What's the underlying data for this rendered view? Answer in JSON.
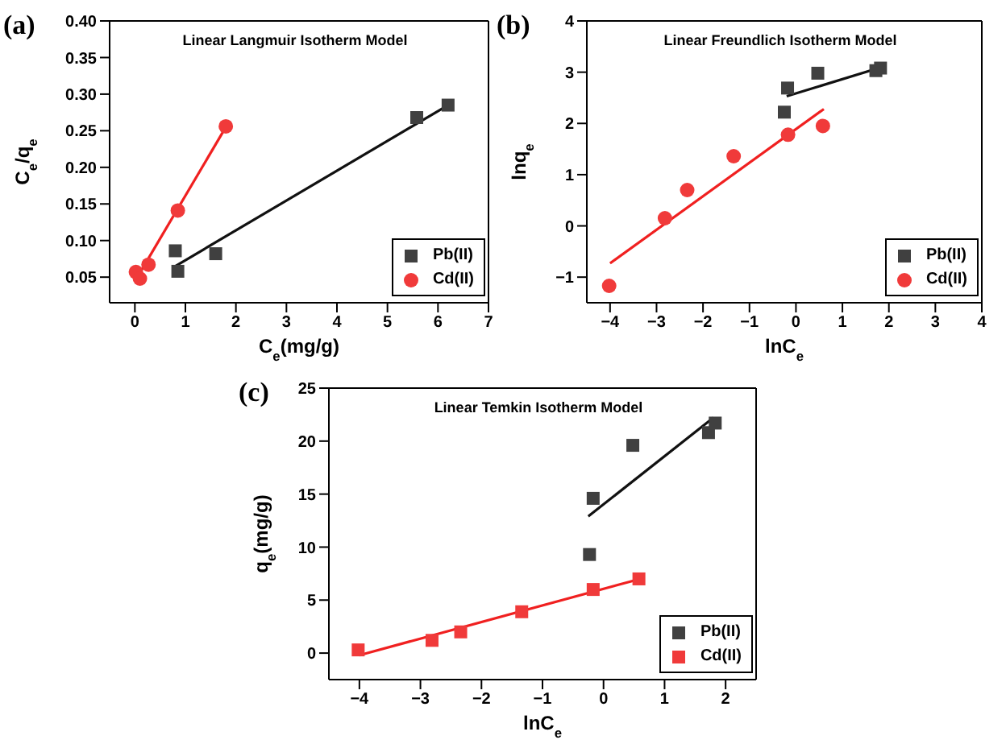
{
  "chart_data": [
    {
      "type": "scatter",
      "title": "Linear Langmuir Isotherm Model",
      "annotations": [
        "(a)"
      ],
      "xlabel": "C$_{e}$(mg/g)",
      "ylabel": "C$_{e}$/q$_{e}$",
      "xlim": [
        -0.5,
        7
      ],
      "xticks": [
        0,
        1,
        2,
        3,
        4,
        5,
        6,
        7
      ],
      "ylim": [
        0.015,
        0.4
      ],
      "yticks": [
        {
          "value": 0.05,
          "label": "0.05"
        },
        {
          "value": 0.1,
          "label": "0.10"
        },
        {
          "value": 0.15,
          "label": "0.15"
        },
        {
          "value": 0.2,
          "label": "0.20"
        },
        {
          "value": 0.25,
          "label": "0.25"
        },
        {
          "value": 0.3,
          "label": "0.30"
        },
        {
          "value": 0.35,
          "label": "0.35"
        },
        {
          "value": 0.4,
          "label": "0.40"
        }
      ],
      "grid": false,
      "legend": "bottom right",
      "series": [
        {
          "name": "Pb(II)",
          "marker": "square",
          "color": "#404040",
          "x": [
            0.8,
            0.85,
            1.6,
            5.58,
            6.2
          ],
          "values": [
            0.086,
            0.058,
            0.082,
            0.268,
            0.285
          ]
        },
        {
          "name": "Cd(II)",
          "marker": "circle",
          "color": "#f03a3a",
          "x": [
            0.02,
            0.1,
            0.27,
            0.85,
            1.8
          ],
          "values": [
            0.057,
            0.048,
            0.067,
            0.141,
            0.256
          ]
        },
        {
          "type": "line",
          "marker": "none",
          "color": "#111111",
          "x": [
            0.8,
            6.2
          ],
          "values": [
            0.065,
            0.285
          ]
        },
        {
          "type": "line",
          "marker": "none",
          "color": "#f02020",
          "x": [
            0.05,
            1.8
          ],
          "values": [
            0.05,
            0.255
          ]
        }
      ]
    },
    {
      "type": "scatter",
      "title": "Linear Freundlich Isotherm Model",
      "annotations": [
        "(b)"
      ],
      "xlabel": "lnC$_{e}$",
      "ylabel": "lnq$_{e}$",
      "xlim": [
        -4.5,
        4
      ],
      "xticks": [
        -4,
        -3,
        -2,
        -1,
        0,
        1,
        2,
        3,
        4
      ],
      "ylim": [
        -1.5,
        4
      ],
      "yticks": [
        -1,
        0,
        1,
        2,
        3,
        4
      ],
      "grid": false,
      "legend": "bottom right",
      "series": [
        {
          "name": "Pb(II)",
          "marker": "square",
          "color": "#404040",
          "x": [
            -0.25,
            -0.18,
            0.47,
            1.72,
            1.82
          ],
          "values": [
            2.22,
            2.69,
            2.98,
            3.03,
            3.08
          ]
        },
        {
          "name": "Cd(II)",
          "marker": "circle",
          "color": "#f03a3a",
          "x": [
            -4.02,
            -2.82,
            -2.34,
            -1.34,
            -0.17,
            0.58
          ],
          "values": [
            -1.17,
            0.15,
            0.7,
            1.36,
            1.78,
            1.95
          ]
        },
        {
          "type": "line",
          "marker": "none",
          "color": "#111111",
          "x": [
            -0.2,
            1.85
          ],
          "values": [
            2.53,
            3.1
          ]
        },
        {
          "type": "line",
          "marker": "none",
          "color": "#f02020",
          "x": [
            -4.0,
            0.6
          ],
          "values": [
            -0.73,
            2.28
          ]
        }
      ]
    },
    {
      "type": "scatter",
      "title": "Linear Temkin Isotherm Model",
      "annotations": [
        "(c)"
      ],
      "xlabel": "lnC$_{e}$",
      "ylabel": "q$_{e}$(mg/g)",
      "xlim": [
        -4.5,
        2.5
      ],
      "xticks": [
        -4,
        -3,
        -2,
        -1,
        0,
        1,
        2
      ],
      "ylim": [
        -2.5,
        25
      ],
      "yticks": [
        0,
        5,
        10,
        15,
        20,
        25
      ],
      "grid": false,
      "legend": "bottom right",
      "series": [
        {
          "name": "Pb(II)",
          "marker": "square",
          "color": "#404040",
          "x": [
            -0.23,
            -0.17,
            0.48,
            1.72,
            1.83
          ],
          "values": [
            9.3,
            14.6,
            19.6,
            20.8,
            21.7
          ]
        },
        {
          "name": "Cd(II)",
          "marker": "square",
          "color": "#f03a3a",
          "x": [
            -4.02,
            -2.81,
            -2.34,
            -1.34,
            -0.17,
            0.58
          ],
          "values": [
            0.3,
            1.2,
            2.0,
            3.9,
            6.0,
            7.0
          ]
        },
        {
          "type": "line",
          "marker": "none",
          "color": "#111111",
          "x": [
            -0.25,
            1.8
          ],
          "values": [
            12.9,
            22.2
          ]
        },
        {
          "type": "line",
          "marker": "none",
          "color": "#f02020",
          "x": [
            -4.0,
            0.6
          ],
          "values": [
            -0.2,
            7.0
          ]
        }
      ]
    }
  ]
}
